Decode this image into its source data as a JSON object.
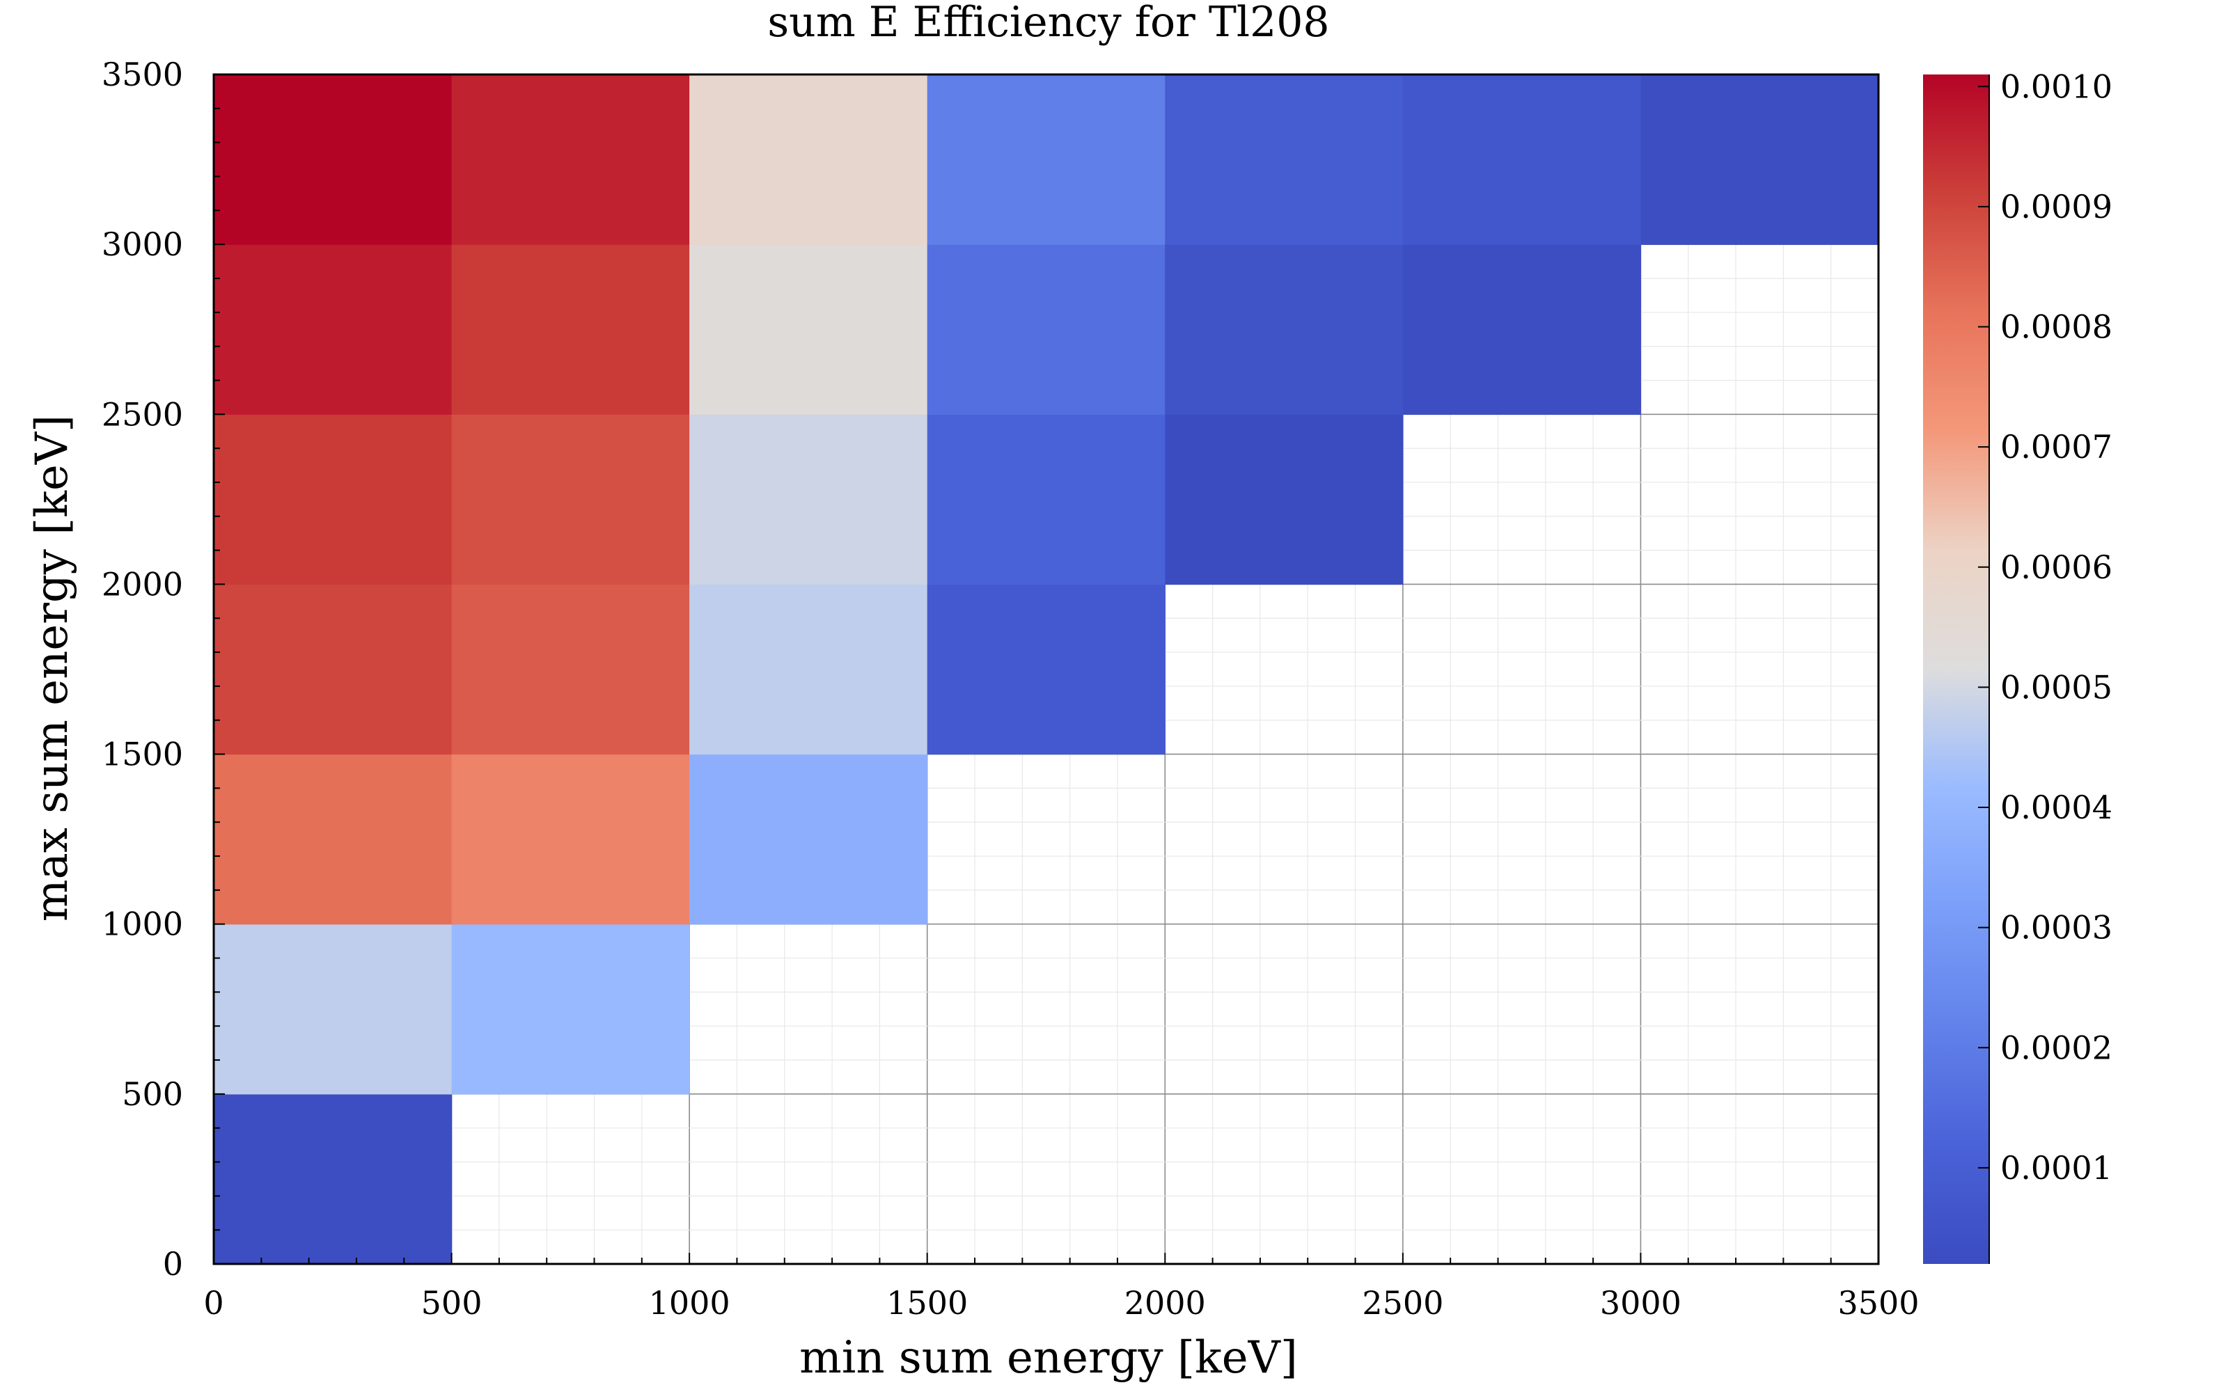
{
  "chart_data": {
    "type": "heatmap",
    "title": "sum E Efficiency for Tl208",
    "xlabel": "min sum energy [keV]",
    "ylabel": "max sum energy [keV]",
    "xlim": [
      0,
      3500
    ],
    "ylim": [
      0,
      3500
    ],
    "x_ticks": [
      "0",
      "500",
      "1000",
      "1500",
      "2000",
      "2500",
      "3000",
      "3500"
    ],
    "y_ticks": [
      "0",
      "500",
      "1000",
      "1500",
      "2000",
      "2500",
      "3000",
      "3500"
    ],
    "x_bin_edges": [
      0,
      500,
      1000,
      1500,
      2000,
      2500,
      3000,
      3500
    ],
    "y_bin_edges": [
      0,
      500,
      1000,
      1500,
      2000,
      2500,
      3000,
      3500
    ],
    "cells": [
      {
        "x_min": 0,
        "y_max": 500,
        "value": 3e-05
      },
      {
        "x_min": 0,
        "y_max": 1000,
        "value": 0.00047
      },
      {
        "x_min": 0,
        "y_max": 1500,
        "value": 0.00082
      },
      {
        "x_min": 0,
        "y_max": 2000,
        "value": 0.0009
      },
      {
        "x_min": 0,
        "y_max": 2500,
        "value": 0.00092
      },
      {
        "x_min": 0,
        "y_max": 3000,
        "value": 0.00097
      },
      {
        "x_min": 0,
        "y_max": 3500,
        "value": 0.00101
      },
      {
        "x_min": 500,
        "y_max": 1000,
        "value": 0.00041
      },
      {
        "x_min": 500,
        "y_max": 1500,
        "value": 0.00077
      },
      {
        "x_min": 500,
        "y_max": 2000,
        "value": 0.00086
      },
      {
        "x_min": 500,
        "y_max": 2500,
        "value": 0.00088
      },
      {
        "x_min": 500,
        "y_max": 3000,
        "value": 0.00092
      },
      {
        "x_min": 500,
        "y_max": 3500,
        "value": 0.00096
      },
      {
        "x_min": 1000,
        "y_max": 1500,
        "value": 0.00037
      },
      {
        "x_min": 1000,
        "y_max": 2000,
        "value": 0.00047
      },
      {
        "x_min": 1000,
        "y_max": 2500,
        "value": 0.00049
      },
      {
        "x_min": 1000,
        "y_max": 3000,
        "value": 0.00053
      },
      {
        "x_min": 1000,
        "y_max": 3500,
        "value": 0.00058
      },
      {
        "x_min": 1500,
        "y_max": 2000,
        "value": 8e-05
      },
      {
        "x_min": 1500,
        "y_max": 2500,
        "value": 0.00012
      },
      {
        "x_min": 1500,
        "y_max": 3000,
        "value": 0.00016
      },
      {
        "x_min": 1500,
        "y_max": 3500,
        "value": 0.00021
      },
      {
        "x_min": 2000,
        "y_max": 2500,
        "value": 2e-05
      },
      {
        "x_min": 2000,
        "y_max": 3000,
        "value": 5e-05
      },
      {
        "x_min": 2000,
        "y_max": 3500,
        "value": 9e-05
      },
      {
        "x_min": 2500,
        "y_max": 3000,
        "value": 3e-05
      },
      {
        "x_min": 2500,
        "y_max": 3500,
        "value": 7e-05
      },
      {
        "x_min": 3000,
        "y_max": 3500,
        "value": 3e-05
      }
    ],
    "colorbar": {
      "colormap": "coolwarm",
      "range": [
        2e-05,
        0.00101
      ],
      "ticks": [
        {
          "value": 0.0001,
          "label": "0.0001"
        },
        {
          "value": 0.0002,
          "label": "0.0002"
        },
        {
          "value": 0.0003,
          "label": "0.0003"
        },
        {
          "value": 0.0004,
          "label": "0.0004"
        },
        {
          "value": 0.0005,
          "label": "0.0005"
        },
        {
          "value": 0.0006,
          "label": "0.0006"
        },
        {
          "value": 0.0007,
          "label": "0.0007"
        },
        {
          "value": 0.0008,
          "label": "0.0008"
        },
        {
          "value": 0.0009,
          "label": "0.0009"
        },
        {
          "value": 0.001,
          "label": "0.0010"
        }
      ]
    },
    "grid": true,
    "colors": {
      "frame": "#000000",
      "major_grid": "#8c8c8c",
      "minor_grid": "#e8e8e8",
      "background": "#ffffff"
    }
  }
}
